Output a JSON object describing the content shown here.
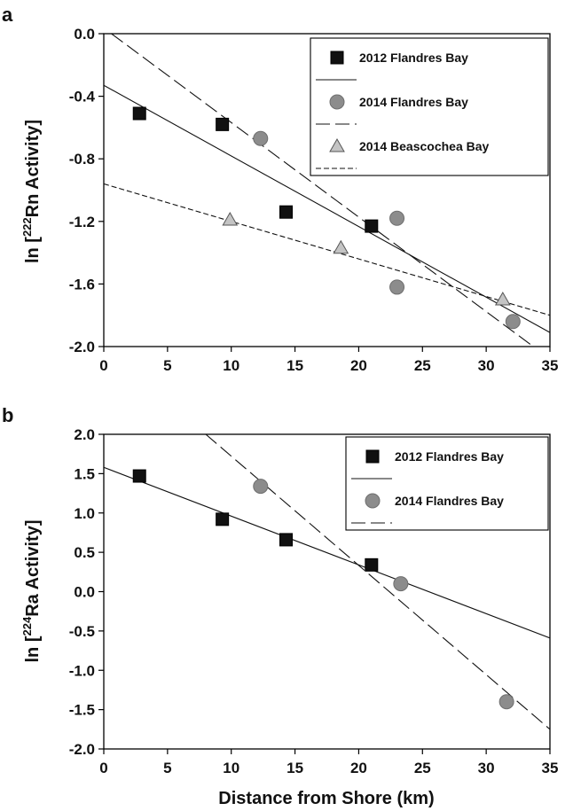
{
  "figure": {
    "xlabel": "Distance from Shore (km)"
  },
  "chart_data": [
    {
      "panel": "a",
      "type": "scatter",
      "ylabel_prefix": "ln [",
      "ylabel_sup": "222",
      "ylabel_suffix": "Rn Activity]",
      "xlim": [
        0,
        35
      ],
      "ylim": [
        -2.0,
        0.0
      ],
      "xticks": [
        0,
        5,
        10,
        15,
        20,
        25,
        30,
        35
      ],
      "yticks": [
        -2.0,
        -1.6,
        -1.2,
        -0.8,
        -0.4,
        0.0
      ],
      "xtick_labels": [
        "0",
        "5",
        "10",
        "15",
        "20",
        "25",
        "30",
        "35"
      ],
      "ytick_labels": [
        "-2.0",
        "-1.6",
        "-1.2",
        "-0.8",
        "-0.4",
        "0.0"
      ],
      "legend_position": "top-right",
      "series": [
        {
          "name": "2012 Flandres Bay",
          "marker": "square",
          "color": "#111111",
          "line_style": "solid",
          "points": [
            [
              2.8,
              -0.51
            ],
            [
              9.3,
              -0.58
            ],
            [
              14.3,
              -1.14
            ],
            [
              21.0,
              -1.23
            ]
          ],
          "fit": [
            [
              0,
              -0.33
            ],
            [
              35,
              -1.91
            ]
          ]
        },
        {
          "name": "2014 Flandres Bay",
          "marker": "circle",
          "color": "#8c8c8c",
          "line_style": "long-dash",
          "points": [
            [
              12.3,
              -0.67
            ],
            [
              23.0,
              -1.18
            ],
            [
              23.0,
              -1.62
            ],
            [
              32.1,
              -1.84
            ]
          ],
          "fit": [
            [
              0.6,
              0.0
            ],
            [
              33.7,
              -2.0
            ]
          ]
        },
        {
          "name": "2014 Beascochea Bay",
          "marker": "triangle",
          "color": "#c4c4c4",
          "line_style": "short-dash",
          "points": [
            [
              9.9,
              -1.19
            ],
            [
              18.6,
              -1.37
            ],
            [
              31.3,
              -1.7
            ]
          ],
          "fit": [
            [
              0,
              -0.96
            ],
            [
              35,
              -1.8
            ]
          ]
        }
      ]
    },
    {
      "panel": "b",
      "type": "scatter",
      "ylabel_prefix": "ln [",
      "ylabel_sup": "224",
      "ylabel_suffix": "Ra Activity]",
      "xlabel": "Distance from Shore (km)",
      "xlim": [
        0,
        35
      ],
      "ylim": [
        -2.0,
        2.0
      ],
      "xticks": [
        0,
        5,
        10,
        15,
        20,
        25,
        30,
        35
      ],
      "yticks": [
        -2.0,
        -1.5,
        -1.0,
        -0.5,
        0.0,
        0.5,
        1.0,
        1.5,
        2.0
      ],
      "xtick_labels": [
        "0",
        "5",
        "10",
        "15",
        "20",
        "25",
        "30",
        "35"
      ],
      "ytick_labels": [
        "-2.0",
        "-1.5",
        "-1.0",
        "-0.5",
        "0.0",
        "0.5",
        "1.0",
        "1.5",
        "2.0"
      ],
      "legend_position": "top-right",
      "series": [
        {
          "name": "2012 Flandres Bay",
          "marker": "square",
          "color": "#111111",
          "line_style": "solid",
          "points": [
            [
              2.8,
              1.47
            ],
            [
              9.3,
              0.92
            ],
            [
              14.3,
              0.66
            ],
            [
              21.0,
              0.34
            ]
          ],
          "fit": [
            [
              0,
              1.58
            ],
            [
              35,
              -0.59
            ]
          ]
        },
        {
          "name": "2014 Flandres Bay",
          "marker": "circle",
          "color": "#8c8c8c",
          "line_style": "long-dash",
          "points": [
            [
              12.3,
              1.34
            ],
            [
              23.3,
              0.1
            ],
            [
              31.6,
              -1.4
            ]
          ],
          "fit": [
            [
              8.0,
              2.0
            ],
            [
              35,
              -1.75
            ]
          ]
        }
      ]
    }
  ]
}
